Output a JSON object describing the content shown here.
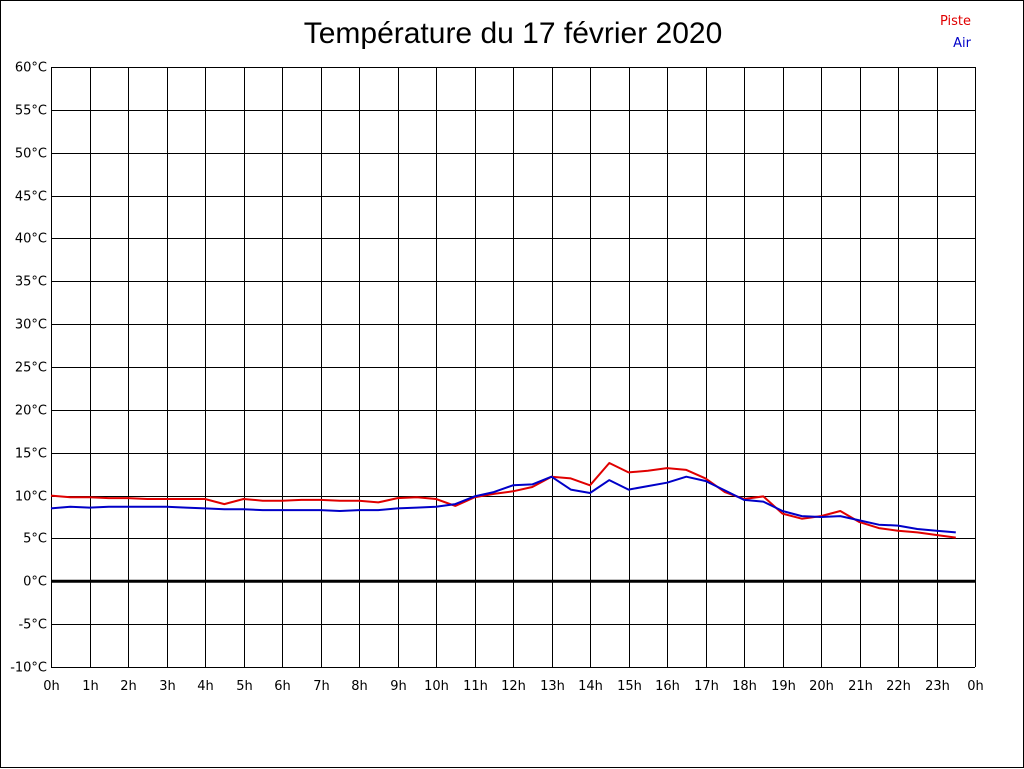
{
  "chart_data": {
    "type": "line",
    "title": "Température du 17 février 2020",
    "xlabel": "",
    "ylabel": "",
    "ylim": [
      -10,
      60
    ],
    "xlim": [
      0,
      24
    ],
    "grid": true,
    "legend_placement": "top-right",
    "y_ticks": [
      "60°C",
      "55°C",
      "50°C",
      "45°C",
      "40°C",
      "35°C",
      "30°C",
      "25°C",
      "20°C",
      "15°C",
      "10°C",
      "5°C",
      "0°C",
      "-5°C",
      "-10°C"
    ],
    "x_ticks": [
      "0h",
      "1h",
      "2h",
      "3h",
      "4h",
      "5h",
      "6h",
      "7h",
      "8h",
      "9h",
      "10h",
      "11h",
      "12h",
      "13h",
      "14h",
      "15h",
      "16h",
      "17h",
      "18h",
      "19h",
      "20h",
      "21h",
      "22h",
      "23h",
      "0h"
    ],
    "x_hours": [
      0,
      0.5,
      1,
      1.5,
      2,
      2.5,
      3,
      3.5,
      4,
      4.5,
      5,
      5.5,
      6,
      6.5,
      7,
      7.5,
      8,
      8.5,
      9,
      9.5,
      10,
      10.5,
      11,
      11.5,
      12,
      12.5,
      13,
      13.5,
      14,
      14.5,
      15,
      15.5,
      16,
      16.5,
      17,
      17.5,
      18,
      18.5,
      19,
      19.5,
      20,
      20.5,
      21,
      21.5,
      22,
      22.5,
      23,
      23.5
    ],
    "series": [
      {
        "name": "Piste",
        "color": "#e00000",
        "values": [
          10.0,
          9.8,
          9.8,
          9.7,
          9.7,
          9.6,
          9.6,
          9.6,
          9.6,
          9.0,
          9.6,
          9.4,
          9.4,
          9.5,
          9.5,
          9.4,
          9.4,
          9.2,
          9.7,
          9.8,
          9.6,
          8.8,
          9.8,
          10.2,
          10.5,
          11.0,
          12.2,
          12.0,
          11.2,
          13.8,
          12.7,
          12.9,
          13.2,
          13.0,
          12.0,
          10.4,
          9.6,
          9.9,
          7.9,
          7.3,
          7.6,
          8.2,
          6.9,
          6.2,
          5.9,
          5.7,
          5.4,
          5.1
        ]
      },
      {
        "name": "Air",
        "color": "#0000c8",
        "values": [
          8.5,
          8.7,
          8.6,
          8.7,
          8.7,
          8.7,
          8.7,
          8.6,
          8.5,
          8.4,
          8.4,
          8.3,
          8.3,
          8.3,
          8.3,
          8.2,
          8.3,
          8.3,
          8.5,
          8.6,
          8.7,
          9.0,
          9.9,
          10.4,
          11.2,
          11.3,
          12.2,
          10.7,
          10.3,
          11.8,
          10.7,
          11.1,
          11.5,
          12.2,
          11.7,
          10.6,
          9.5,
          9.3,
          8.2,
          7.6,
          7.5,
          7.6,
          7.1,
          6.6,
          6.5,
          6.1,
          5.9,
          5.7
        ]
      }
    ]
  }
}
